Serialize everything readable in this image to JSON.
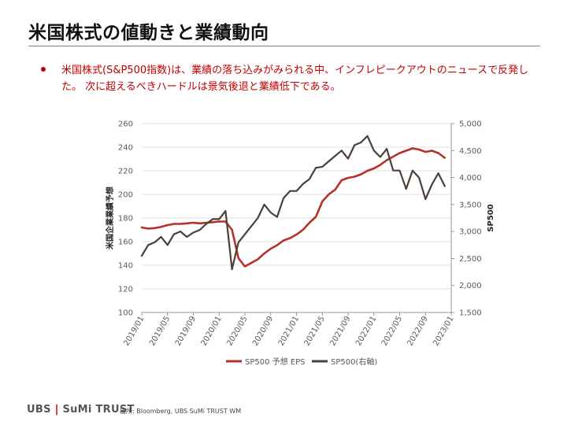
{
  "page": {
    "title": "米国株式の値動きと業績動向",
    "bullet": "米国株式(S&P500指数)は、業績の落ち込みがみられる中、インフレピークアウトのニュースで反発した。 次に超えるべきハードルは景気後退と業績低下である。",
    "footer_logo_left": "UBS",
    "footer_logo_sep": "|",
    "footer_logo_right": "SuMi TRUST",
    "source": "出所: Bloomberg, UBS SuMi TRUST WM"
  },
  "colors": {
    "eps": "#b5302a",
    "spx": "#4b3f38",
    "accent": "#c00000"
  },
  "chart_data": {
    "type": "line",
    "ylabel": "米国企業業績予想",
    "y2label": "SP500",
    "ylim": [
      100,
      260
    ],
    "yticks": [
      100,
      120,
      140,
      160,
      180,
      200,
      220,
      240,
      260
    ],
    "y2lim": [
      1500,
      5000
    ],
    "y2ticks": [
      "1,500",
      "2,000",
      "2,500",
      "3,000",
      "3,500",
      "4,000",
      "4,500",
      "5,000"
    ],
    "y2tick_values": [
      1500,
      2000,
      2500,
      3000,
      3500,
      4000,
      4500,
      5000
    ],
    "xlim": [
      "2019-01",
      "2023-01"
    ],
    "xticks": [
      "2019/01",
      "2019/05",
      "2019/09",
      "2020/01",
      "2020/05",
      "2020/09",
      "2021/01",
      "2021/05",
      "2021/09",
      "2022/01",
      "2022/05",
      "2022/09",
      "2023/01"
    ],
    "legend_position": "bottom",
    "series": [
      {
        "name": "SP500 予想 EPS",
        "axis": "left",
        "x": [
          "2019-01",
          "2019-02",
          "2019-03",
          "2019-04",
          "2019-05",
          "2019-06",
          "2019-07",
          "2019-08",
          "2019-09",
          "2019-10",
          "2019-11",
          "2019-12",
          "2020-01",
          "2020-02",
          "2020-03",
          "2020-04",
          "2020-05",
          "2020-06",
          "2020-07",
          "2020-08",
          "2020-09",
          "2020-10",
          "2020-11",
          "2020-12",
          "2021-01",
          "2021-02",
          "2021-03",
          "2021-04",
          "2021-05",
          "2021-06",
          "2021-07",
          "2021-08",
          "2021-09",
          "2021-10",
          "2021-11",
          "2021-12",
          "2022-01",
          "2022-02",
          "2022-03",
          "2022-04",
          "2022-05",
          "2022-06",
          "2022-07",
          "2022-08",
          "2022-09",
          "2022-10",
          "2022-11",
          "2022-12"
        ],
        "values": [
          172,
          171,
          171.5,
          172.5,
          174,
          175,
          175,
          175.5,
          176,
          175.5,
          176,
          176.5,
          177,
          177,
          170,
          146,
          139,
          142,
          145,
          150,
          154,
          157,
          161,
          163,
          166,
          170,
          176,
          181,
          194,
          200,
          204,
          212,
          214,
          215,
          217,
          220,
          222,
          225,
          229,
          232,
          235,
          237,
          239,
          238,
          236,
          237,
          235,
          231
        ]
      },
      {
        "name": "SP500(右軸)",
        "axis": "right",
        "x": [
          "2019-01",
          "2019-02",
          "2019-03",
          "2019-04",
          "2019-05",
          "2019-06",
          "2019-07",
          "2019-08",
          "2019-09",
          "2019-10",
          "2019-11",
          "2019-12",
          "2020-01",
          "2020-02",
          "2020-03",
          "2020-04",
          "2020-05",
          "2020-06",
          "2020-07",
          "2020-08",
          "2020-09",
          "2020-10",
          "2020-11",
          "2020-12",
          "2021-01",
          "2021-02",
          "2021-03",
          "2021-04",
          "2021-05",
          "2021-06",
          "2021-07",
          "2021-08",
          "2021-09",
          "2021-10",
          "2021-11",
          "2021-12",
          "2022-01",
          "2022-02",
          "2022-03",
          "2022-04",
          "2022-05",
          "2022-06",
          "2022-07",
          "2022-08",
          "2022-09",
          "2022-10",
          "2022-11",
          "2022-12"
        ],
        "values": [
          2550,
          2750,
          2800,
          2900,
          2750,
          2950,
          3000,
          2900,
          2980,
          3030,
          3140,
          3230,
          3230,
          3380,
          2300,
          2800,
          2950,
          3100,
          3250,
          3500,
          3350,
          3270,
          3620,
          3750,
          3750,
          3880,
          3970,
          4180,
          4200,
          4300,
          4400,
          4500,
          4350,
          4600,
          4650,
          4770,
          4500,
          4380,
          4530,
          4130,
          4130,
          3790,
          4130,
          4000,
          3600,
          3870,
          4080,
          3840
        ]
      }
    ]
  }
}
